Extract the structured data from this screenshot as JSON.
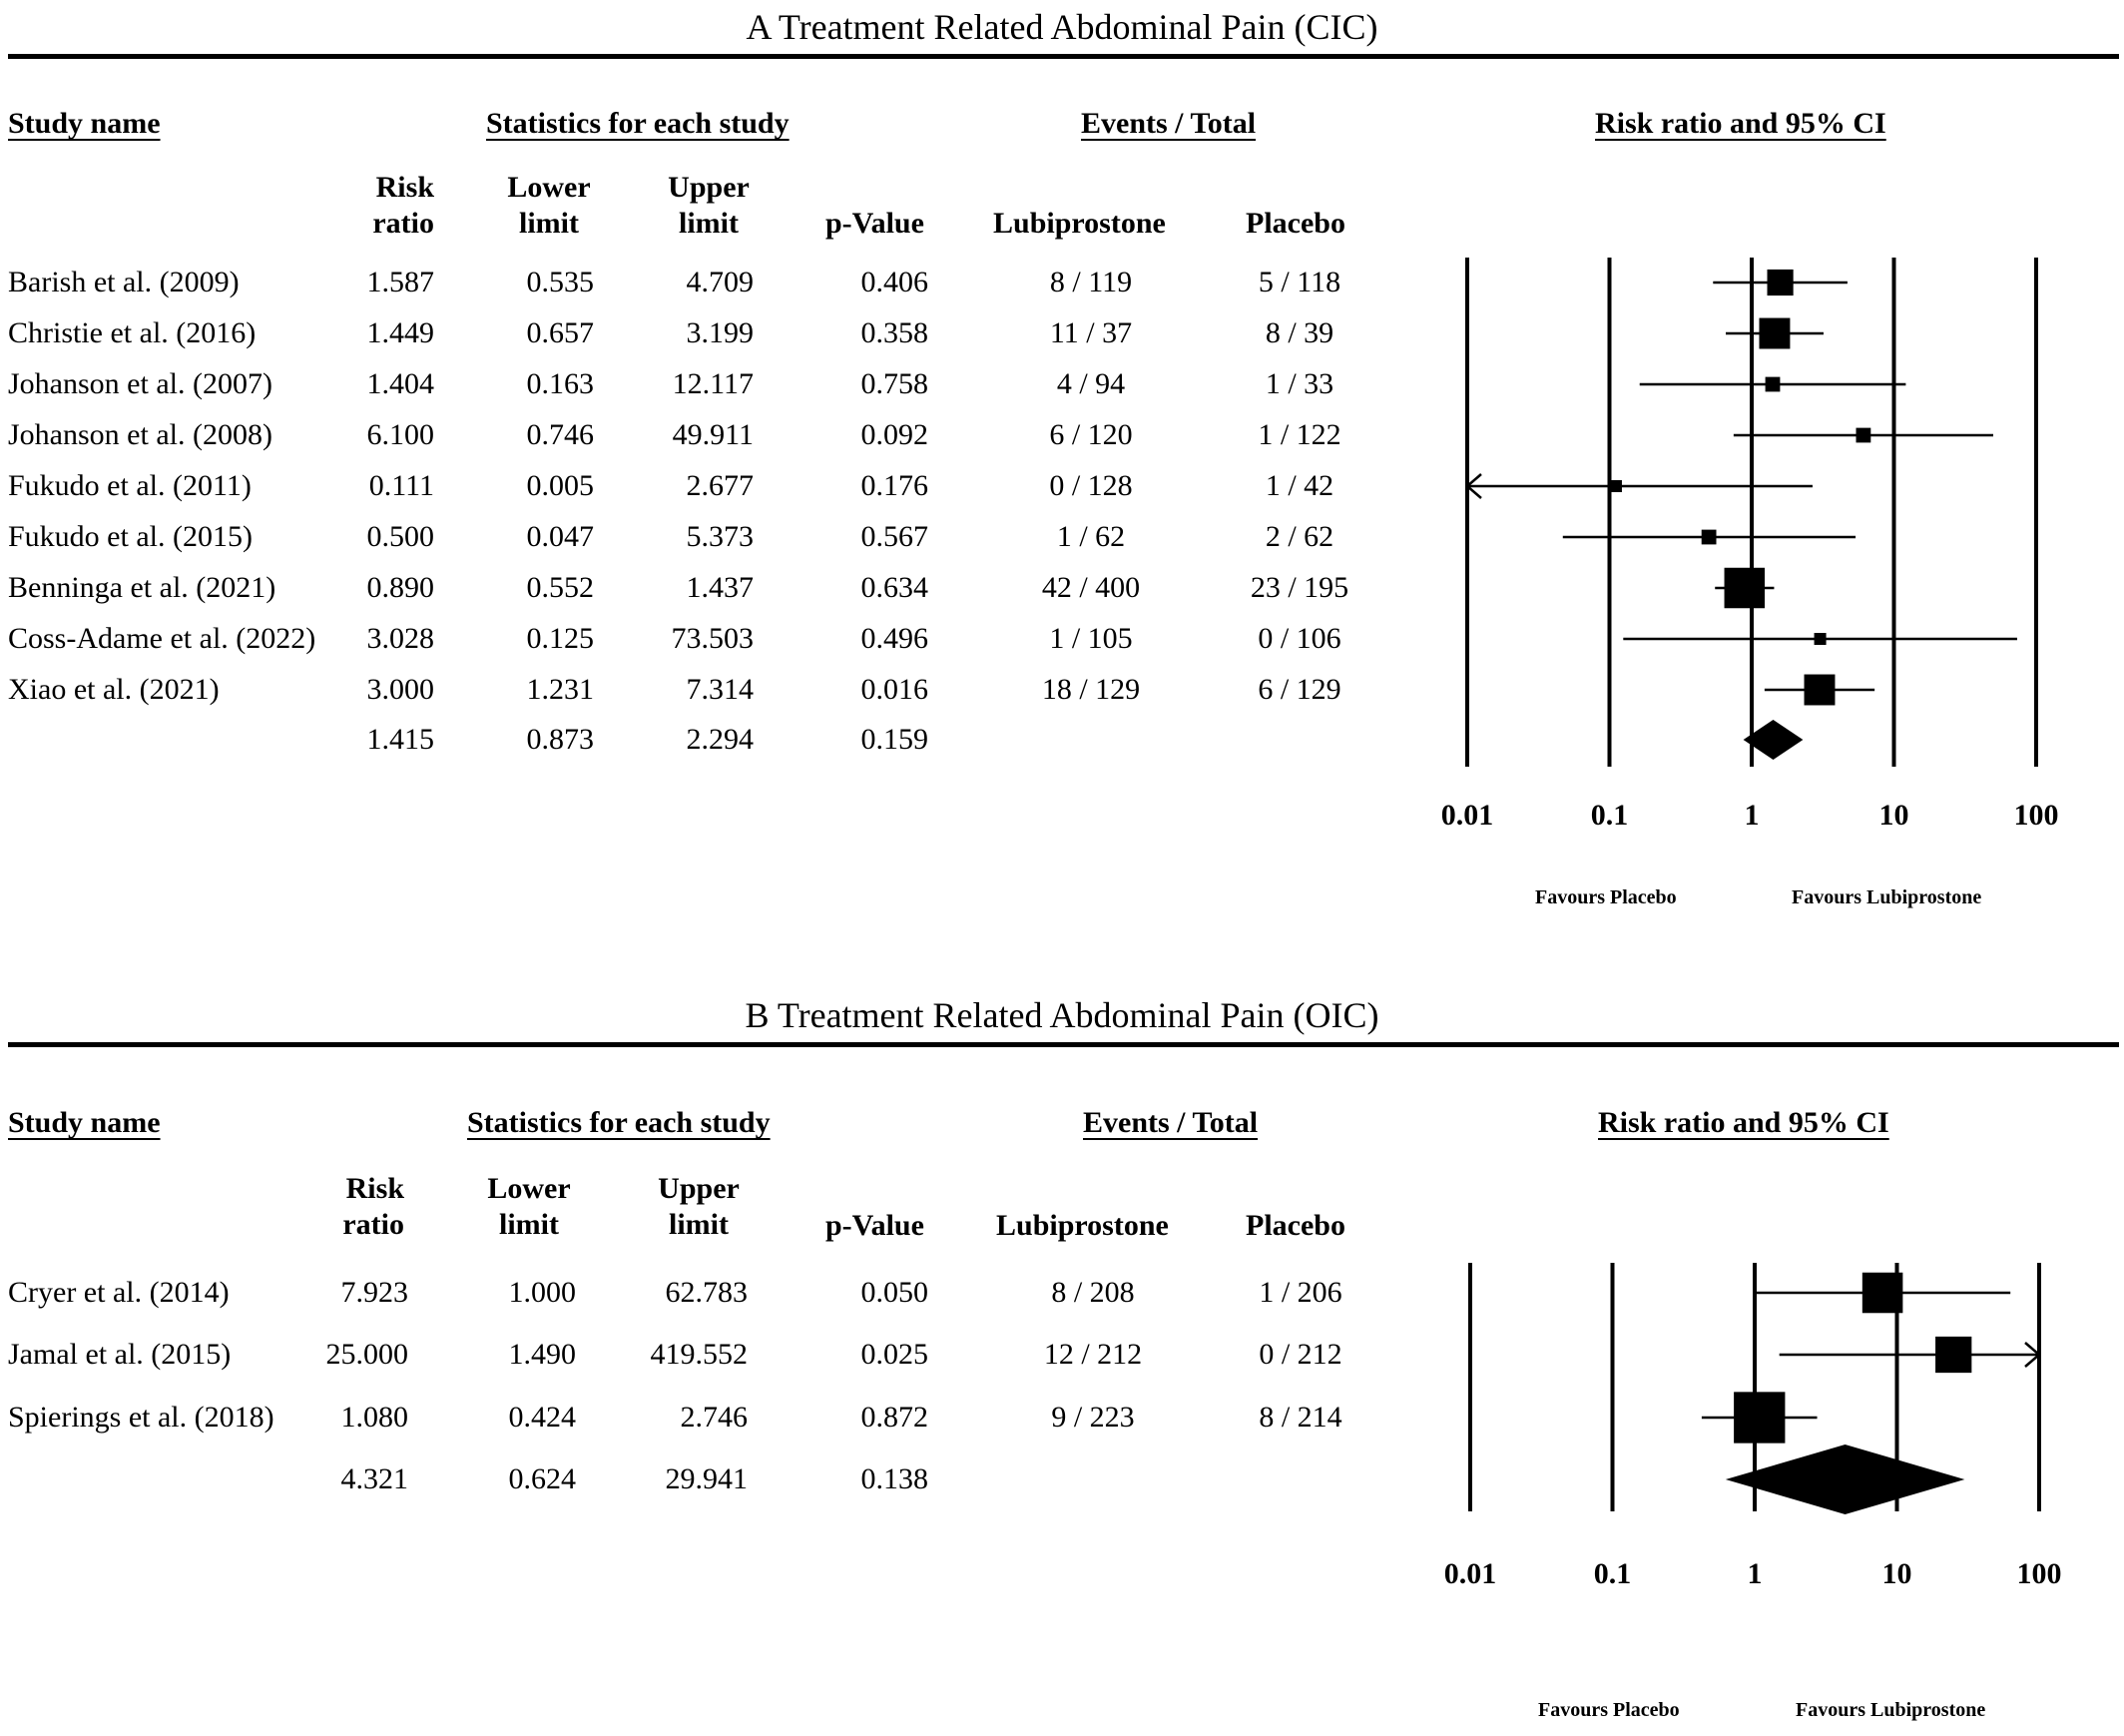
{
  "chart_data": [
    {
      "type": "forest",
      "title": "A Treatment Related Abdominal Pain  (CIC)",
      "headers": {
        "study": "Study name",
        "stats_group": "Statistics for each study",
        "events_group": "Events / Total",
        "plot": "Risk ratio and 95% CI",
        "rr": [
          "Risk",
          "ratio"
        ],
        "lower": [
          "Lower",
          "limit"
        ],
        "upper": [
          "Upper",
          "limit"
        ],
        "p": "p-Value",
        "arm1": "Lubiprostone",
        "arm2": "Placebo"
      },
      "rows": [
        {
          "study": "Barish et al. (2009)",
          "rr": "1.587",
          "lower": "0.535",
          "upper": "4.709",
          "p": "0.406",
          "lub": "8 / 119",
          "pla": "5 / 118",
          "weight": 5
        },
        {
          "study": "Christie et al. (2016)",
          "rr": "1.449",
          "lower": "0.657",
          "upper": "3.199",
          "p": "0.358",
          "lub": "11 / 37",
          "pla": "8 / 39",
          "weight": 7
        },
        {
          "study": "Johanson et al. (2007)",
          "rr": "1.404",
          "lower": "0.163",
          "upper": "12.117",
          "p": "0.758",
          "lub": "4 / 94",
          "pla": "1 / 33",
          "weight": 1.6
        },
        {
          "study": "Johanson et al. (2008)",
          "rr": "6.100",
          "lower": "0.746",
          "upper": "49.911",
          "p": "0.092",
          "lub": "6 / 120",
          "pla": "1 / 122",
          "weight": 1.6
        },
        {
          "study": "Fukudo et al. (2011)",
          "rr": "0.111",
          "lower": "0.005",
          "upper": "2.677",
          "p": "0.176",
          "lub": "0 / 128",
          "pla": "1 / 42",
          "weight": 0.9
        },
        {
          "study": "Fukudo et al. (2015)",
          "rr": "0.500",
          "lower": "0.047",
          "upper": "5.373",
          "p": "0.567",
          "lub": "1 / 62",
          "pla": "2 / 62",
          "weight": 1.6
        },
        {
          "study": "Benninga et al. (2021)",
          "rr": "0.890",
          "lower": "0.552",
          "upper": "1.437",
          "p": "0.634",
          "lub": "42 / 400",
          "pla": "23 / 195",
          "weight": 12
        },
        {
          "study": "Coss-Adame et al. (2022)",
          "rr": "3.028",
          "lower": "0.125",
          "upper": "73.503",
          "p": "0.496",
          "lub": "1 / 105",
          "pla": "0 / 106",
          "weight": 1
        },
        {
          "study": "Xiao et al. (2021)",
          "rr": "3.000",
          "lower": "1.231",
          "upper": "7.314",
          "p": "0.016",
          "lub": "18 / 129",
          "pla": "6 / 129",
          "weight": 7
        }
      ],
      "summary": {
        "rr": "1.415",
        "lower": "0.873",
        "upper": "2.294",
        "p": "0.159"
      },
      "x_ticks": [
        "0.01",
        "0.1",
        "1",
        "10",
        "100"
      ],
      "x_scale": "log",
      "xlim": [
        0.01,
        100
      ],
      "favours_left": "Favours Placebo",
      "favours_right": "Favours Lubiprostone"
    },
    {
      "type": "forest",
      "title": "B Treatment Related Abdominal Pain  (OIC)",
      "headers": {
        "study": "Study name",
        "stats_group": "Statistics for each study",
        "events_group": "Events / Total",
        "plot": "Risk ratio and 95% CI",
        "rr": [
          "Risk",
          "ratio"
        ],
        "lower": [
          "Lower",
          "limit"
        ],
        "upper": [
          "Upper",
          "limit"
        ],
        "p": "p-Value",
        "arm1": "Lubiprostone",
        "arm2": "Placebo"
      },
      "rows": [
        {
          "study": "Cryer et al. (2014)",
          "rr": "7.923",
          "lower": "1.000",
          "upper": "62.783",
          "p": "0.050",
          "lub": "8 / 208",
          "pla": "1 / 206",
          "weight": 10
        },
        {
          "study": "Jamal et al. (2015)",
          "rr": "25.000",
          "lower": "1.490",
          "upper": "419.552",
          "p": "0.025",
          "lub": "12 / 212",
          "pla": "0 / 212",
          "weight": 8
        },
        {
          "study": "Spierings et al. (2018)",
          "rr": "1.080",
          "lower": "0.424",
          "upper": "2.746",
          "p": "0.872",
          "lub": "9 / 223",
          "pla": "8 / 214",
          "weight": 16
        }
      ],
      "summary": {
        "rr": "4.321",
        "lower": "0.624",
        "upper": "29.941",
        "p": "0.138"
      },
      "x_ticks": [
        "0.01",
        "0.1",
        "1",
        "10",
        "100"
      ],
      "x_scale": "log",
      "xlim": [
        0.01,
        100
      ],
      "favours_left": "Favours Placebo",
      "favours_right": "Favours Lubiprostone"
    }
  ]
}
